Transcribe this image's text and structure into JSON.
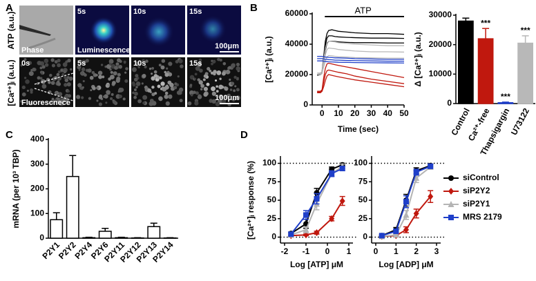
{
  "panel_a": {
    "label": "A",
    "row_labels": [
      "ATP (a.u.)",
      "[Ca²⁺]ᵢ (a.u.)"
    ],
    "top_row": [
      {
        "caption": "Phase"
      },
      {
        "time": "5s",
        "caption": "Luminescence"
      },
      {
        "time": "10s"
      },
      {
        "time": "15s",
        "scale": "100μm"
      }
    ],
    "bottom_row": [
      {
        "time": "0s",
        "caption": "Fluorescnece"
      },
      {
        "time": "5s"
      },
      {
        "time": "10s"
      },
      {
        "time": "15s",
        "scale": "100μm"
      }
    ]
  },
  "chart_data": [
    {
      "type": "line",
      "panel": "B",
      "ylabel": "[Ca²⁺]ᵢ (a.u.)",
      "xlabel": "Time (sec)",
      "annotation": "ATP",
      "x": [
        -3,
        -1,
        0,
        1,
        2,
        3,
        4,
        6,
        8,
        10,
        15,
        20,
        30,
        40,
        50
      ],
      "xlim": [
        -6,
        50
      ],
      "xticks": [
        0,
        10,
        20,
        30,
        40,
        50
      ],
      "ylim": [
        0,
        60000
      ],
      "yticks": [
        0,
        20000,
        40000,
        60000
      ],
      "series": [
        {
          "color": "#000000",
          "values": [
            20000,
            20500,
            22000,
            32000,
            42000,
            47000,
            49000,
            49500,
            49000,
            48500,
            48000,
            47500,
            47000,
            47000,
            46500
          ]
        },
        {
          "color": "#000000",
          "values": [
            20000,
            20000,
            21000,
            30000,
            39000,
            44000,
            45500,
            45500,
            45000,
            44800,
            44500,
            44300,
            44000,
            44000,
            43800
          ]
        },
        {
          "color": "#000000",
          "values": [
            19500,
            20000,
            21000,
            28000,
            36000,
            40500,
            42000,
            42000,
            41800,
            41500,
            41200,
            41000,
            41000,
            40800,
            40800
          ]
        },
        {
          "color": "#b8b8b8",
          "values": [
            21000,
            21000,
            22000,
            30000,
            37000,
            41000,
            42000,
            41800,
            41500,
            41000,
            40500,
            40000,
            39500,
            39000,
            39000
          ]
        },
        {
          "color": "#b8b8b8",
          "values": [
            20000,
            20500,
            21000,
            27000,
            33000,
            36500,
            37500,
            37200,
            37000,
            36500,
            36000,
            35500,
            35000,
            35000,
            34800
          ]
        },
        {
          "color": "#b8b8b8",
          "values": [
            20000,
            20000,
            21000,
            25000,
            29000,
            31500,
            32500,
            32300,
            32000,
            31700,
            31500,
            31200,
            31000,
            30800,
            30800
          ]
        },
        {
          "color": "#c0180e",
          "values": [
            9000,
            9000,
            10000,
            18000,
            24000,
            27000,
            27500,
            27000,
            26500,
            26000,
            25000,
            24000,
            22000,
            20000,
            18000
          ]
        },
        {
          "color": "#c0180e",
          "values": [
            8500,
            8500,
            9500,
            15000,
            20000,
            22500,
            23000,
            22500,
            22000,
            21500,
            20500,
            19000,
            17000,
            15500,
            14000
          ]
        },
        {
          "color": "#c0180e",
          "values": [
            8000,
            8000,
            9000,
            12000,
            16000,
            19000,
            20000,
            19500,
            19000,
            18500,
            17500,
            16500,
            15000,
            13500,
            12000
          ]
        },
        {
          "color": "#1f3fc9",
          "values": [
            32000,
            32000,
            32000,
            31800,
            31500,
            31500,
            31300,
            31200,
            31000,
            31000,
            30800,
            30500,
            30300,
            30000,
            30000
          ]
        },
        {
          "color": "#1f3fc9",
          "values": [
            30500,
            30500,
            30500,
            30300,
            30000,
            30000,
            29800,
            29700,
            29500,
            29500,
            29300,
            29200,
            29000,
            28800,
            28800
          ]
        },
        {
          "color": "#1f3fc9",
          "values": [
            29000,
            29000,
            29000,
            28800,
            28600,
            28500,
            28400,
            28300,
            28200,
            28100,
            28000,
            27900,
            27800,
            27700,
            27600
          ]
        }
      ]
    },
    {
      "type": "bar",
      "ylabel": "Δ [Ca²⁺]ᵢ (a.u.)",
      "categories": [
        "Control",
        "Ca²⁺-free",
        "Thapsigargin",
        "U73122"
      ],
      "values": [
        28000,
        22000,
        300,
        20500
      ],
      "errors": [
        1000,
        3500,
        200,
        2500
      ],
      "colors": [
        "#000000",
        "#c0180e",
        "#1f3fc9",
        "#b8b8b8"
      ],
      "significance": [
        null,
        "***",
        "***",
        "***"
      ],
      "ylim": [
        0,
        30000
      ],
      "yticks": [
        0,
        10000,
        20000,
        30000
      ]
    },
    {
      "type": "bar",
      "panel": "C",
      "ylabel": "mRNA (per 10³ TBP)",
      "categories": [
        "P2Y1",
        "P2Y2",
        "P2Y4",
        "P2Y6",
        "P2Y11",
        "P2Y12",
        "P2Y13",
        "P2Y14"
      ],
      "values": [
        75,
        250,
        2,
        28,
        2,
        1,
        47,
        1
      ],
      "errors": [
        28,
        85,
        2,
        12,
        2,
        1,
        14,
        1
      ],
      "color": "#ffffff",
      "edgecolor": "#000000",
      "ylim": [
        0,
        400
      ],
      "yticks": [
        0,
        100,
        200,
        300,
        400
      ]
    },
    {
      "type": "line",
      "panel": "D",
      "ylabel": "[Ca²⁺]ᵢ response (%)",
      "xlabel": "Log [ATP] μM",
      "x": [
        -1.7,
        -1.0,
        -0.5,
        0.2,
        0.7
      ],
      "xlim": [
        -2,
        1
      ],
      "xticks": [
        -2,
        -1,
        0,
        1
      ],
      "ylim": [
        -8,
        108
      ],
      "yticks": [
        0,
        25,
        50,
        75,
        100
      ],
      "reference_lines": [
        0,
        100
      ],
      "series": [
        {
          "color": "#000000",
          "marker": "circle",
          "values": [
            5,
            18,
            60,
            92,
            98
          ],
          "errors": [
            2,
            6,
            6,
            3,
            2
          ]
        },
        {
          "color": "#c0180e",
          "marker": "diamond",
          "values": [
            2,
            3,
            6,
            25,
            49
          ],
          "errors": [
            1,
            1,
            2,
            3,
            6
          ]
        },
        {
          "color": "#b4b4b4",
          "marker": "triangle",
          "values": [
            3,
            10,
            45,
            86,
            96
          ],
          "errors": [
            1,
            4,
            8,
            4,
            3
          ]
        },
        {
          "color": "#1f3fc9",
          "marker": "square",
          "values": [
            4,
            30,
            52,
            86,
            93
          ],
          "errors": [
            2,
            6,
            7,
            4,
            3
          ]
        }
      ]
    },
    {
      "type": "line",
      "xlabel": "Log [ADP] μM",
      "legend": "right",
      "x": [
        0.3,
        1.0,
        1.5,
        2.0,
        2.7
      ],
      "xlim": [
        0,
        3
      ],
      "xticks": [
        0,
        1,
        2,
        3
      ],
      "ylim": [
        -8,
        108
      ],
      "yticks": [
        0,
        25,
        50,
        75,
        100
      ],
      "reference_lines": [
        0,
        100
      ],
      "series": [
        {
          "name": "siControl",
          "color": "#000000",
          "marker": "circle",
          "values": [
            2,
            10,
            50,
            90,
            97
          ],
          "errors": [
            1,
            3,
            8,
            4,
            2
          ]
        },
        {
          "name": "siP2Y2",
          "color": "#c0180e",
          "marker": "diamond",
          "values": [
            1,
            2,
            10,
            32,
            55
          ],
          "errors": [
            1,
            1,
            4,
            6,
            8
          ]
        },
        {
          "name": "siP2Y1",
          "color": "#b4b4b4",
          "marker": "triangle",
          "values": [
            1,
            3,
            30,
            80,
            95
          ],
          "errors": [
            1,
            1,
            6,
            6,
            3
          ]
        },
        {
          "name": "MRS 2179",
          "color": "#1f3fc9",
          "marker": "square",
          "values": [
            2,
            8,
            48,
            88,
            96
          ],
          "errors": [
            1,
            3,
            8,
            4,
            3
          ]
        }
      ]
    }
  ]
}
